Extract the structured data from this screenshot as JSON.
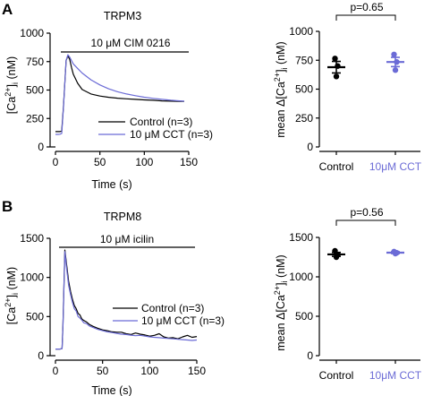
{
  "colors": {
    "control": "#000000",
    "treatment": "#6b6bd6",
    "axis": "#000000"
  },
  "chart_data": [
    {
      "panel": "A",
      "type": "line",
      "title": "TRPM3",
      "xlabel": "Time (s)",
      "ylabel": "[Ca2+]i (nM)",
      "xlim": [
        0,
        150
      ],
      "ylim": [
        0,
        1000
      ],
      "xticks": [
        "0",
        "50",
        "100",
        "150"
      ],
      "yticks": [
        "0",
        "250",
        "500",
        "750",
        "1000"
      ],
      "stimulus": {
        "label": "10 μM CIM 0216",
        "x_start": 10,
        "x_end": 150
      },
      "legend": [
        "Control (n=3)",
        "10 μM CCT (n=3)"
      ],
      "legend_position": "lower-right",
      "series": [
        {
          "name": "Control (n=3)",
          "color_key": "control",
          "x": [
            0,
            3,
            5,
            7,
            9,
            12,
            14,
            16,
            18,
            20,
            25,
            30,
            40,
            50,
            60,
            70,
            80,
            90,
            100,
            110,
            120,
            130,
            140,
            145
          ],
          "y": [
            135,
            135,
            135,
            140,
            350,
            760,
            800,
            770,
            700,
            640,
            560,
            505,
            465,
            447,
            436,
            428,
            423,
            418,
            413,
            410,
            405,
            402,
            400,
            400
          ]
        },
        {
          "name": "10 μM CCT (n=3)",
          "color_key": "treatment",
          "x": [
            0,
            3,
            5,
            7,
            9,
            12,
            14,
            16,
            18,
            20,
            25,
            30,
            40,
            50,
            60,
            70,
            80,
            90,
            100,
            110,
            120,
            130,
            140,
            145
          ],
          "y": [
            110,
            110,
            112,
            118,
            340,
            760,
            810,
            790,
            760,
            730,
            690,
            650,
            590,
            545,
            510,
            485,
            465,
            450,
            437,
            427,
            418,
            410,
            405,
            402
          ]
        }
      ]
    },
    {
      "panel": "A",
      "type": "scatter",
      "title": "",
      "xlabel": "",
      "ylabel": "mean Δ[Ca2+]i (nM)",
      "ylim": [
        0,
        1000
      ],
      "yticks": [
        "0",
        "250",
        "500",
        "750",
        "1000"
      ],
      "categories": [
        "Control",
        "10μM CCT"
      ],
      "points": [
        [
          765,
          700,
          610
        ],
        [
          800,
          735,
          665
        ]
      ],
      "means": [
        690,
        735
      ],
      "sems": [
        50,
        40
      ],
      "significance": {
        "label": "p=0.65",
        "between": [
          0,
          1
        ]
      }
    },
    {
      "panel": "B",
      "type": "line",
      "title": "TRPM8",
      "xlabel": "Time (s)",
      "ylabel": "[Ca2+]i (nM)",
      "xlim": [
        0,
        150
      ],
      "ylim": [
        0,
        1500
      ],
      "xticks": [
        "0",
        "50",
        "100",
        "150"
      ],
      "yticks": [
        "0",
        "500",
        "1000",
        "1500"
      ],
      "stimulus": {
        "label": "10 μM icilin",
        "x_start": 10,
        "x_end": 150
      },
      "legend": [
        "Control (n=3)",
        "10 μM CCT (n=3)"
      ],
      "legend_position": "lower-right",
      "series": [
        {
          "name": "Control (n=3)",
          "color_key": "control",
          "x": [
            0,
            3,
            5,
            7,
            8,
            10,
            12,
            14,
            16,
            18,
            20,
            22,
            24,
            26,
            28,
            30,
            33,
            36,
            40,
            45,
            50,
            55,
            60,
            65,
            70,
            75,
            80,
            85,
            90,
            95,
            100,
            105,
            110,
            115,
            120,
            125,
            130,
            135,
            140,
            145,
            150
          ],
          "y": [
            85,
            85,
            85,
            90,
            400,
            1350,
            1150,
            950,
            820,
            720,
            640,
            600,
            540,
            520,
            470,
            450,
            430,
            400,
            375,
            350,
            330,
            320,
            305,
            300,
            300,
            280,
            270,
            290,
            275,
            265,
            250,
            260,
            280,
            240,
            225,
            230,
            215,
            240,
            260,
            235,
            245
          ]
        },
        {
          "name": "10 μM CCT (n=3)",
          "color_key": "treatment",
          "x": [
            0,
            3,
            5,
            7,
            8,
            10,
            12,
            14,
            16,
            18,
            20,
            22,
            24,
            26,
            28,
            30,
            33,
            36,
            40,
            45,
            50,
            55,
            60,
            65,
            70,
            75,
            80,
            85,
            90,
            95,
            100,
            105,
            110,
            115,
            120,
            125,
            130,
            135,
            140,
            145,
            150
          ],
          "y": [
            85,
            85,
            85,
            90,
            380,
            1330,
            1100,
            900,
            780,
            680,
            600,
            570,
            500,
            480,
            455,
            420,
            410,
            380,
            360,
            335,
            320,
            305,
            295,
            285,
            275,
            270,
            262,
            255,
            260,
            250,
            240,
            235,
            230,
            225,
            220,
            215,
            210,
            205,
            200,
            195,
            200
          ]
        }
      ]
    },
    {
      "panel": "B",
      "type": "scatter",
      "title": "",
      "xlabel": "",
      "ylabel": "mean Δ[Ca2+]i (nM)",
      "ylim": [
        0,
        1500
      ],
      "yticks": [
        "0",
        "500",
        "1000",
        "1500"
      ],
      "categories": [
        "Control",
        "10μM CCT"
      ],
      "points": [
        [
          1330,
          1280,
          1250
        ],
        [
          1320,
          1305,
          1295
        ]
      ],
      "means": [
        1285,
        1307
      ],
      "sems": [
        25,
        12
      ],
      "significance": {
        "label": "p=0.56",
        "between": [
          0,
          1
        ]
      }
    }
  ]
}
